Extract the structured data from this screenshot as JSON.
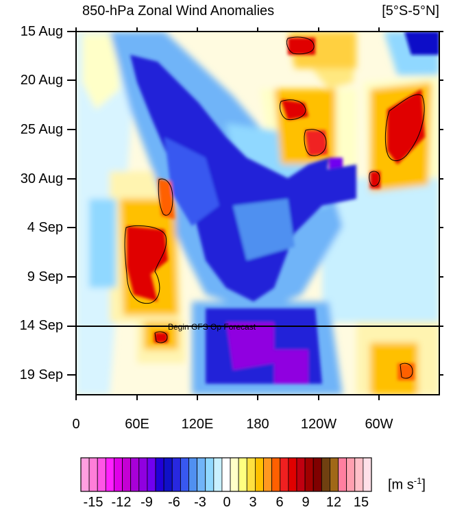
{
  "title": "850-hPa Zonal Wind Anomalies",
  "region": "[5°S-5°N]",
  "forecast_label": "Begin GFS Op Forecast",
  "units": "[m s",
  "units_exp": "-1",
  "units_close": "]",
  "chart_data": {
    "type": "heatmap",
    "title": "850-hPa Zonal Wind Anomalies",
    "region": "[5°S-5°N]",
    "y_axis": {
      "labels": [
        "15 Aug",
        "20 Aug",
        "25 Aug",
        "30 Aug",
        "4 Sep",
        "9 Sep",
        "14 Sep",
        "19 Sep"
      ],
      "direction": "time increases downward",
      "range": [
        "15 Aug",
        "21 Sep"
      ]
    },
    "x_axis": {
      "labels": [
        "0",
        "60E",
        "120E",
        "180",
        "120W",
        "60W"
      ],
      "range": [
        "0",
        "360"
      ]
    },
    "forecast_start": "14 Sep",
    "forecast_label": "Begin GFS Op Forecast",
    "colorbar": {
      "units": "m s-1",
      "tick_labels": [
        "-15",
        "-12",
        "-9",
        "-6",
        "-3",
        "0",
        "3",
        "6",
        "9",
        "12",
        "15"
      ],
      "colors": [
        "#ff9fe0",
        "#ff7ed8",
        "#ff55e6",
        "#ff20ff",
        "#e000e8",
        "#c400d4",
        "#a800d8",
        "#9000e0",
        "#7000f0",
        "#2000d8",
        "#1010c8",
        "#2828e0",
        "#3858f0",
        "#5090f0",
        "#70b4f8",
        "#90d8ff",
        "#c8f0ff",
        "#ffffff",
        "#ffffc8",
        "#ffff80",
        "#ffe040",
        "#ffc000",
        "#ff9820",
        "#ff6000",
        "#f02020",
        "#e00000",
        "#c00010",
        "#a00000",
        "#800000",
        "#704010",
        "#a06818",
        "#ff7fa0",
        "#ffa0b0",
        "#ffc0c8",
        "#ffe0e8"
      ]
    },
    "features": [
      {
        "kind": "westerly anomaly",
        "location": "60E-90E",
        "time": "30 Aug - 14 Sep",
        "peak": 9
      },
      {
        "kind": "easterly anomaly",
        "location": "90E-140W",
        "time": "20 Aug - 10 Sep",
        "peak": -9
      },
      {
        "kind": "westerly anomaly",
        "location": "140W-110W",
        "time": "20 Aug - 27 Aug",
        "peak": 9
      },
      {
        "kind": "westerly anomaly",
        "location": "60W-20W",
        "time": "20 Aug - 31 Aug",
        "peak": 9
      },
      {
        "kind": "easterly anomaly",
        "location": "150E-150W",
        "time": "13 Sep - 21 Sep",
        "peak": -9
      }
    ]
  },
  "y_labels": [
    "15 Aug",
    "20 Aug",
    "25 Aug",
    "30 Aug",
    "4 Sep",
    "9 Sep",
    "14 Sep",
    "19 Sep"
  ],
  "x_labels": [
    "0",
    "60E",
    "120E",
    "180",
    "120W",
    "60W"
  ],
  "cb_labels": [
    "-15",
    "-12",
    "-9",
    "-6",
    "-3",
    "0",
    "3",
    "6",
    "9",
    "12",
    "15"
  ]
}
